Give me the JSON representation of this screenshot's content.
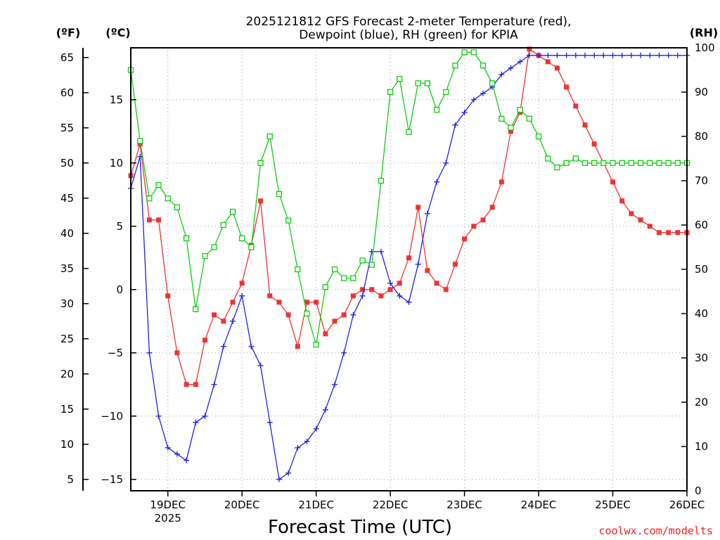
{
  "chart_data": {
    "type": "line",
    "title_line1": "2025121812 GFS Forecast 2-meter Temperature (red),",
    "title_line2": "Dewpoint (blue), RH (green) for KPIA",
    "xlabel": "Forecast Time (UTC)",
    "credit": "coolwx.com/modelts",
    "unit_f": "(ºF)",
    "unit_c": "(ºC)",
    "unit_rh": "(RH)",
    "x_unit": "hours since 2025-12-18 12 UTC",
    "x_range": [
      0,
      180
    ],
    "x_ticks": [
      {
        "x": 12,
        "label": "19DEC",
        "sub": "2025"
      },
      {
        "x": 36,
        "label": "20DEC",
        "sub": ""
      },
      {
        "x": 60,
        "label": "21DEC",
        "sub": ""
      },
      {
        "x": 84,
        "label": "22DEC",
        "sub": ""
      },
      {
        "x": 108,
        "label": "23DEC",
        "sub": ""
      },
      {
        "x": 132,
        "label": "24DEC",
        "sub": ""
      },
      {
        "x": 156,
        "label": "25DEC",
        "sub": ""
      },
      {
        "x": 180,
        "label": "26DEC",
        "sub": ""
      }
    ],
    "y_range_c": [
      -15.9,
      19.1
    ],
    "y_ticks_c": [
      15,
      10,
      5,
      0,
      -5,
      -10,
      -15
    ],
    "y_ticks_f": [
      65,
      60,
      55,
      50,
      45,
      40,
      35,
      30,
      25,
      20,
      15,
      10,
      5
    ],
    "y_range_rh": [
      0,
      100
    ],
    "y_ticks_rh": [
      100,
      90,
      80,
      70,
      60,
      50,
      40,
      30,
      20,
      10,
      0
    ],
    "colors": {
      "temperature": "#ee3333",
      "dewpoint": "#2222dd",
      "rh": "#11cc11",
      "grid": "#999999",
      "credit": "#ee2222"
    },
    "series": [
      {
        "name": "Temperature",
        "axis": "c",
        "marker": "square",
        "x": [
          0,
          3,
          6,
          9,
          12,
          15,
          18,
          21,
          24,
          27,
          30,
          33,
          36,
          39,
          42,
          45,
          48,
          51,
          54,
          57,
          60,
          63,
          66,
          69,
          72,
          75,
          78,
          81,
          84,
          87,
          90,
          93,
          96,
          99,
          102,
          105,
          108,
          111,
          114,
          117,
          120,
          123,
          126,
          129,
          132,
          135,
          138,
          141,
          144,
          147,
          150,
          153,
          156,
          159,
          162,
          165,
          168,
          171,
          174,
          177,
          180
        ],
        "y": [
          9,
          11.5,
          5.5,
          5.5,
          -0.5,
          -5,
          -7.5,
          -7.5,
          -4,
          -2,
          -2.5,
          -1,
          0.5,
          3.5,
          7,
          -0.5,
          -1,
          -2,
          -4.5,
          -1,
          -1,
          -3.5,
          -2.5,
          -2,
          -0.5,
          0,
          0,
          -0.5,
          0,
          0.5,
          2.5,
          6.5,
          1.5,
          0.5,
          0,
          2,
          4,
          5,
          5.5,
          6.5,
          8.5,
          12.5,
          14,
          19,
          18.5,
          18,
          17.5,
          16,
          14.5,
          13,
          11.5,
          10,
          8.5,
          7,
          6,
          5.5,
          5,
          4.5,
          4.5,
          4.5,
          4.5
        ]
      },
      {
        "name": "Dewpoint",
        "axis": "c",
        "marker": "plus",
        "x": [
          0,
          3,
          6,
          9,
          12,
          15,
          18,
          21,
          24,
          27,
          30,
          33,
          36,
          39,
          42,
          45,
          48,
          51,
          54,
          57,
          60,
          63,
          66,
          69,
          72,
          75,
          78,
          81,
          84,
          87,
          90,
          93,
          96,
          99,
          102,
          105,
          108,
          111,
          114,
          117,
          120,
          123,
          126,
          129,
          132,
          135,
          138,
          141,
          144,
          147,
          150,
          153,
          156,
          159,
          162,
          165,
          168,
          171,
          174,
          177,
          180
        ],
        "y": [
          8,
          10.5,
          -5,
          -10,
          -12.5,
          -13,
          -13.5,
          -10.5,
          -10,
          -7.5,
          -4.5,
          -2.5,
          -0.5,
          -4.5,
          -6,
          -10.5,
          -15,
          -14.5,
          -12.5,
          -12,
          -11,
          -9.5,
          -7.5,
          -5,
          -2,
          -0.5,
          3,
          3,
          0.5,
          -0.5,
          -1,
          2,
          6,
          8.5,
          10,
          13,
          14,
          15,
          15.5,
          16,
          17,
          17.5,
          18,
          18.5,
          18.5,
          18.5,
          18.5,
          18.5,
          18.5,
          18.5,
          18.5,
          18.5,
          18.5,
          18.5,
          18.5,
          18.5,
          18.5,
          18.5,
          18.5,
          18.5,
          18.5
        ]
      },
      {
        "name": "RH",
        "axis": "rh",
        "marker": "open-square",
        "x": [
          0,
          3,
          6,
          9,
          12,
          15,
          18,
          21,
          24,
          27,
          30,
          33,
          36,
          39,
          42,
          45,
          48,
          51,
          54,
          57,
          60,
          63,
          66,
          69,
          72,
          75,
          78,
          81,
          84,
          87,
          90,
          93,
          96,
          99,
          102,
          105,
          108,
          111,
          114,
          117,
          120,
          123,
          126,
          129,
          132,
          135,
          138,
          141,
          144,
          147,
          150,
          153,
          156,
          159,
          162,
          165,
          168,
          171,
          174,
          177,
          180
        ],
        "y": [
          95,
          79,
          66,
          69,
          66,
          64,
          57,
          41,
          53,
          55,
          60,
          63,
          57,
          55,
          74,
          80,
          67,
          61,
          50,
          40,
          33,
          46,
          50,
          48,
          48,
          52,
          51,
          70,
          90,
          93,
          81,
          92,
          92,
          86,
          90,
          96,
          99,
          99,
          96,
          92,
          84,
          82,
          86,
          84,
          80,
          75,
          73,
          74,
          75,
          74,
          74,
          74,
          74,
          74,
          74,
          74,
          74,
          74,
          74,
          74,
          74
        ]
      }
    ]
  }
}
